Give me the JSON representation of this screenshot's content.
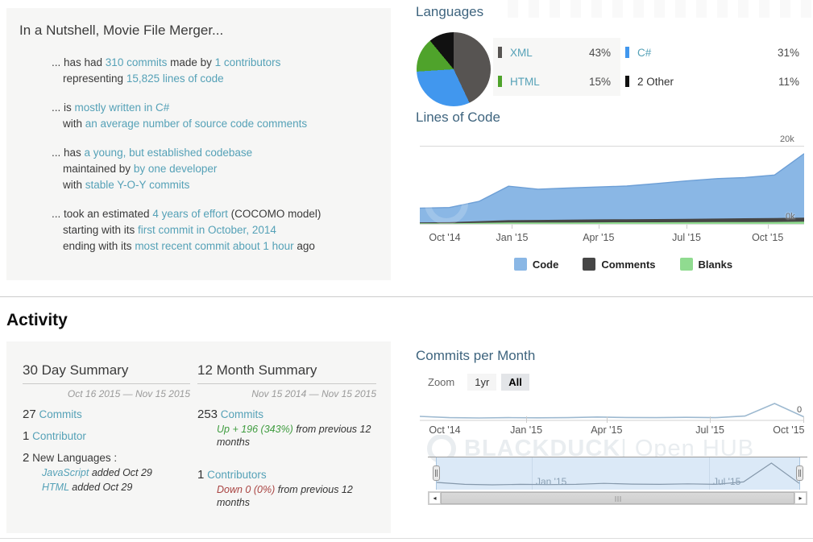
{
  "nutshell": {
    "title": "In a Nutshell, Movie File Merger...",
    "f1l1a": "... has had ",
    "f1l1b": "310 commits",
    "f1l1c": " made by ",
    "f1l1d": "1 contributors",
    "f1l2a": "representing ",
    "f1l2b": "15,825 lines of code",
    "f2l1a": "... is ",
    "f2l1b": "mostly written in C#",
    "f2l2a": "with ",
    "f2l2b": "an average number of source code comments",
    "f3l1a": "... has ",
    "f3l1b": "a young, but established codebase",
    "f3l2a": "maintained by ",
    "f3l2b": "by one developer",
    "f3l3a": "with ",
    "f3l3b": "stable Y-O-Y commits",
    "f4l1a": "... took an estimated ",
    "f4l1b": "4 years of effort",
    "f4l1c": " (COCOMO model)",
    "f4l2a": "starting with its ",
    "f4l2b": "first commit in October, 2014",
    "f4l3a": "ending with its ",
    "f4l3b": "most recent commit about 1 hour",
    "f4l3c": " ago"
  },
  "languages": {
    "heading": "Languages",
    "items": [
      {
        "name": "XML",
        "pct": "43%",
        "color": "#575452"
      },
      {
        "name": "C#",
        "pct": "31%",
        "color": "#4197ee"
      },
      {
        "name": "HTML",
        "pct": "15%",
        "color": "#4fa32b"
      },
      {
        "name": "2 Other",
        "pct": "11%",
        "color": "#111111"
      }
    ]
  },
  "loc_chart": {
    "heading": "Lines of Code",
    "ymax_label": "20k",
    "ymin_label": "0k",
    "legend": [
      "Code",
      "Comments",
      "Blanks"
    ]
  },
  "activity": {
    "heading": "Activity",
    "summary30": {
      "title": "30 Day Summary",
      "range": "Oct 16 2015 — Nov 15 2015",
      "commits_n": "27",
      "commits_label": "Commits",
      "contrib_n": "1",
      "contrib_label": "Contributor",
      "newlang_n": "2",
      "newlang_label": "New Languages :",
      "lang1_name": "JavaScript",
      "lang1_note": " added Oct 29",
      "lang2_name": "HTML",
      "lang2_note": " added Oct 29"
    },
    "summary12": {
      "title": "12 Month Summary",
      "range": "Nov 15 2014 — Nov 15 2015",
      "commits_n": "253",
      "commits_label": "Commits",
      "commits_delta": "Up + 196 (343%)",
      "commits_delta_rest": " from previous 12 months",
      "contrib_n": "1",
      "contrib_label": "Contributors",
      "contrib_delta": "Down 0 (0%)",
      "contrib_delta_rest": " from previous 12 months"
    }
  },
  "commits_chart": {
    "heading": "Commits per Month",
    "zoom_label": "Zoom",
    "zoom_options": [
      "1yr",
      "All"
    ],
    "selected_zoom": "All",
    "y_zero": "0",
    "navigator_labels": [
      "Jan '15",
      "Jul '15"
    ],
    "watermark_bold": "BLACKDUCK",
    "watermark_light": " | Open HUB",
    "scroll_left_arrow": "◂",
    "scroll_right_arrow": "▸"
  },
  "chart_data": [
    {
      "type": "pie",
      "title": "Languages",
      "labels": [
        "XML",
        "C#",
        "HTML",
        "2 Other"
      ],
      "values": [
        43,
        31,
        15,
        11
      ],
      "colors": [
        "#575452",
        "#4197ee",
        "#4fa32b",
        "#111111"
      ]
    },
    {
      "type": "area",
      "title": "Lines of Code",
      "stacked": true,
      "x": [
        "Oct '14",
        "Nov '14",
        "Dec '14",
        "Jan '15",
        "Feb '15",
        "Mar '15",
        "Apr '15",
        "May '15",
        "Jun '15",
        "Jul '15",
        "Aug '15",
        "Sep '15",
        "Oct '15",
        "Nov '15"
      ],
      "series": [
        {
          "name": "Code",
          "color": "#8ab7e5",
          "edge": "#6d9fd6",
          "values": [
            3600,
            3700,
            5000,
            8600,
            7800,
            8000,
            8200,
            8400,
            9000,
            9600,
            10100,
            10300,
            10900,
            16200
          ]
        },
        {
          "name": "Comments",
          "color": "#464646",
          "values": [
            250,
            280,
            450,
            600,
            650,
            700,
            750,
            780,
            800,
            850,
            900,
            950,
            1000,
            1050
          ]
        },
        {
          "name": "Blanks",
          "color": "#90db90",
          "values": [
            350,
            360,
            450,
            550,
            560,
            580,
            600,
            610,
            620,
            640,
            660,
            680,
            700,
            750
          ]
        }
      ],
      "ylim": [
        0,
        20000
      ],
      "yticks": [
        "0k",
        "20k"
      ],
      "xticks": [
        "Oct '14",
        "Jan '15",
        "Apr '15",
        "Jul '15",
        "Oct '15"
      ],
      "legend": [
        "Code",
        "Comments",
        "Blanks"
      ],
      "legend_position": "bottom",
      "grid": "top-line-only"
    },
    {
      "type": "line",
      "title": "Commits per Month",
      "x": [
        "Oct '14",
        "Nov '14",
        "Dec '14",
        "Jan '15",
        "Feb '15",
        "Mar '15",
        "Apr '15",
        "May '15",
        "Jun '15",
        "Jul '15",
        "Aug '15",
        "Sep '15",
        "Oct '15",
        "Nov '15"
      ],
      "series": [
        {
          "name": "Commits",
          "color": "#9db9d0",
          "values": [
            20,
            12,
            10,
            12,
            11,
            12,
            16,
            13,
            12,
            14,
            12,
            22,
            100,
            16
          ]
        }
      ],
      "ylim": [
        0,
        110
      ],
      "yticks": [
        "0"
      ],
      "xticks": [
        "Oct '14",
        "Jan '15",
        "Apr '15",
        "Jul '15",
        "Oct '15"
      ],
      "note": "values estimated from pixels; 12-month total shown on page is 253 commits"
    }
  ]
}
